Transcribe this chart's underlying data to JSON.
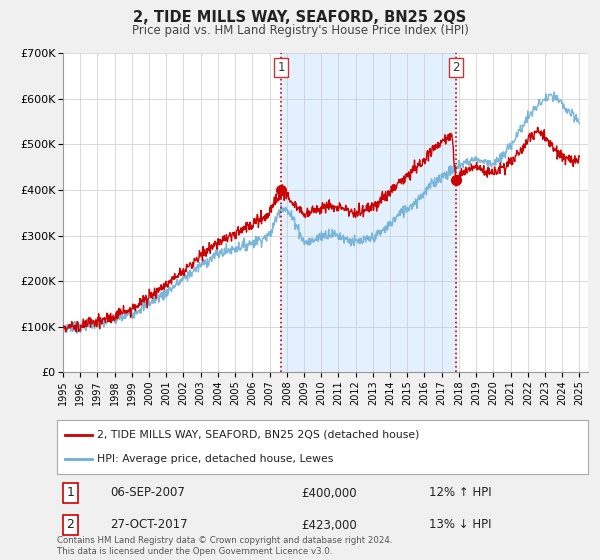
{
  "title": "2, TIDE MILLS WAY, SEAFORD, BN25 2QS",
  "subtitle": "Price paid vs. HM Land Registry's House Price Index (HPI)",
  "ylim": [
    0,
    700000
  ],
  "xlim_start": 1995.0,
  "xlim_end": 2025.5,
  "yticks": [
    0,
    100000,
    200000,
    300000,
    400000,
    500000,
    600000,
    700000
  ],
  "ytick_labels": [
    "£0",
    "£100K",
    "£200K",
    "£300K",
    "£400K",
    "£500K",
    "£600K",
    "£700K"
  ],
  "xticks": [
    1995,
    1996,
    1997,
    1998,
    1999,
    2000,
    2001,
    2002,
    2003,
    2004,
    2005,
    2006,
    2007,
    2008,
    2009,
    2010,
    2011,
    2012,
    2013,
    2014,
    2015,
    2016,
    2017,
    2018,
    2019,
    2020,
    2021,
    2022,
    2023,
    2024,
    2025
  ],
  "hpi_color": "#6baed6",
  "price_color": "#cc0000",
  "shade_color": "#ddeeff",
  "vline_color": "#cc0000",
  "marker1_x": 2007.67,
  "marker1_y": 400000,
  "marker2_x": 2017.82,
  "marker2_y": 423000,
  "legend_line1": "2, TIDE MILLS WAY, SEAFORD, BN25 2QS (detached house)",
  "legend_line2": "HPI: Average price, detached house, Lewes",
  "table_row1_num": "1",
  "table_row1_date": "06-SEP-2007",
  "table_row1_price": "£400,000",
  "table_row1_hpi": "12% ↑ HPI",
  "table_row2_num": "2",
  "table_row2_date": "27-OCT-2017",
  "table_row2_price": "£423,000",
  "table_row2_hpi": "13% ↓ HPI",
  "footnote": "Contains HM Land Registry data © Crown copyright and database right 2024.\nThis data is licensed under the Open Government Licence v3.0.",
  "background_color": "#f0f0f0",
  "plot_bg_color": "#ffffff",
  "grid_color": "#cccccc",
  "annotation_box_color": "#cc3333"
}
